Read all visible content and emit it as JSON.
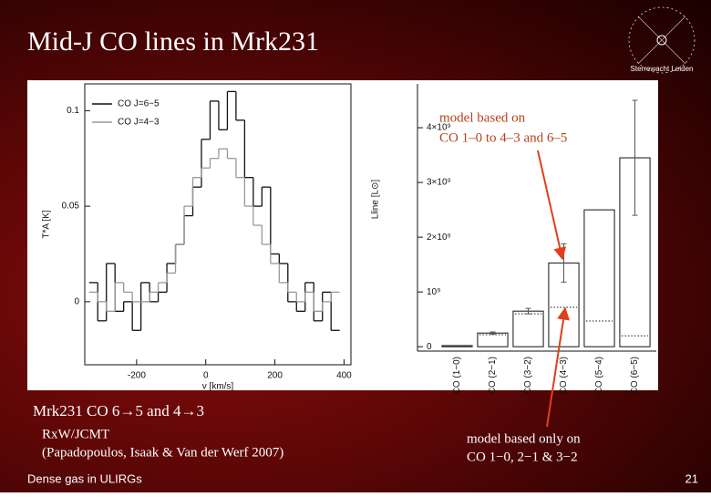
{
  "slide": {
    "title": "Mid-J CO lines in Mrk231",
    "caption": "Mrk231 CO 6→5 and 4→3",
    "instrument": "RxW/JCMT",
    "reference": "(Papadopoulos, Isaak & Van der Werf 2007)",
    "footer": "Dense gas in ULIRGs",
    "page_number": "21",
    "logo_text": "Sterrewacht Leiden",
    "annotation_top_1": "model based on",
    "annotation_top_2": "CO 1–0 to 4–3 and 6–5",
    "annotation_bottom_1": "model based only on",
    "annotation_bottom_2": "CO 1−0, 2−1 & 3−2"
  },
  "chart_data": [
    {
      "type": "line",
      "step": true,
      "x_label": "v [km/s]",
      "y_label": "T*A [K]",
      "x": [
        -325,
        -300,
        -275,
        -250,
        -225,
        -200,
        -175,
        -150,
        -125,
        -100,
        -75,
        -50,
        -25,
        0,
        25,
        50,
        75,
        100,
        125,
        150,
        175,
        200,
        225,
        250,
        275,
        300,
        325,
        350,
        375
      ],
      "series": [
        {
          "name": "CO J=6−5",
          "color": "#111111",
          "values": [
            0.01,
            -0.01,
            0.02,
            -0.005,
            0.0,
            -0.015,
            0.01,
            0.0,
            0.005,
            0.02,
            0.03,
            0.045,
            0.06,
            0.085,
            0.105,
            0.09,
            0.11,
            0.095,
            0.065,
            0.05,
            0.06,
            0.025,
            0.02,
            0.0,
            -0.005,
            0.01,
            -0.01,
            0.005,
            -0.015
          ]
        },
        {
          "name": "CO J=4−3",
          "color": "#999999",
          "values": [
            0.005,
            0.0,
            -0.005,
            0.01,
            0.005,
            0.0,
            0.0,
            0.005,
            0.01,
            0.015,
            0.03,
            0.05,
            0.065,
            0.07,
            0.075,
            0.08,
            0.075,
            0.065,
            0.05,
            0.04,
            0.03,
            0.02,
            0.01,
            0.005,
            0.0,
            0.005,
            -0.005,
            0.0,
            0.005
          ]
        }
      ],
      "xlim": [
        -350,
        420
      ],
      "xticks": [
        -200,
        0,
        200,
        400
      ],
      "ylim": [
        -0.033,
        0.114
      ],
      "yticks": [
        0,
        0.05,
        0.1
      ]
    },
    {
      "type": "bar",
      "y_label": "Lline [L⊙]",
      "categories": [
        "CO (1−0)",
        "CO (2−1)",
        "CO (3−2)",
        "CO (4−3)",
        "CO (5−4)",
        "CO (6−5)"
      ],
      "values": [
        20000000,
        250000000,
        650000000,
        1530000000,
        2500000000,
        3450000000
      ],
      "errors": [
        null,
        20000000,
        50000000,
        350000000,
        null,
        1050000000
      ],
      "model_values": [
        20000000,
        220000000,
        600000000,
        720000000,
        470000000,
        200000000
      ],
      "color": "#ffffff",
      "ylim": [
        -80000000,
        4800000000
      ],
      "yticks": [
        0,
        {
          "value": 1000000000,
          "label": "10⁹"
        },
        {
          "value": 2000000000,
          "label": "2×10⁹"
        },
        {
          "value": 3000000000,
          "label": "3×10⁹"
        },
        {
          "value": 4000000000,
          "label": "4×10⁹"
        }
      ]
    }
  ]
}
